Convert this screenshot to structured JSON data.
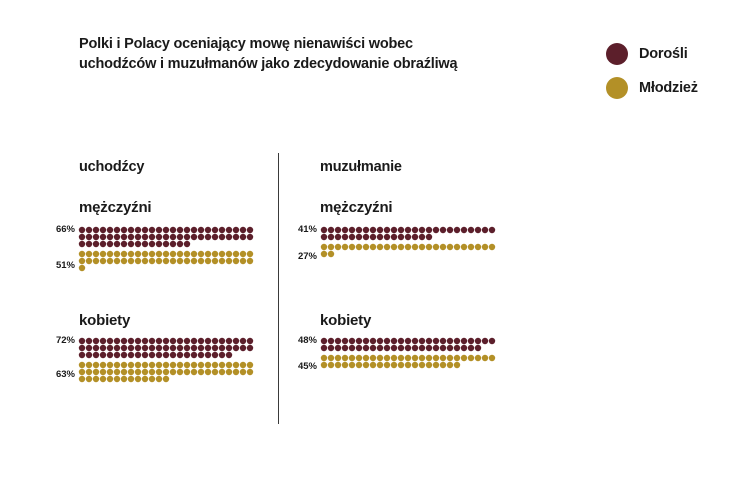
{
  "title_line1": "Polki i Polacy oceniający mowę nienawiści wobec",
  "title_line2": "uchodźców i muzułmanów jako zdecydowanie obraźliwą",
  "colors": {
    "adults": "#5c1f2b",
    "youth": "#b39027"
  },
  "legend": [
    {
      "label": "Dorośli",
      "color": "#5c1f2b"
    },
    {
      "label": "Młodzież",
      "color": "#b39027"
    }
  ],
  "chart_data": {
    "type": "dot-matrix",
    "title": "Polki i Polacy oceniający mowę nienawiści wobec uchodźców i muzułmanów jako zdecydowanie obraźliwą",
    "unit": "%",
    "series": [
      {
        "name": "Dorośli"
      },
      {
        "name": "Młodzież"
      }
    ],
    "panels": [
      {
        "name": "uchodźcy",
        "groups": [
          {
            "name": "mężczyźni",
            "values": [
              {
                "series": "Dorośli",
                "label": "66%",
                "value": 66
              },
              {
                "series": "Młodzież",
                "label": "51%",
                "value": 51
              }
            ]
          },
          {
            "name": "kobiety",
            "values": [
              {
                "series": "Dorośli",
                "label": "72%",
                "value": 72
              },
              {
                "series": "Młodzież",
                "label": "63%",
                "value": 63
              }
            ]
          }
        ]
      },
      {
        "name": "muzułmanie",
        "groups": [
          {
            "name": "mężczyźni",
            "values": [
              {
                "series": "Dorośli",
                "label": "41%",
                "value": 41
              },
              {
                "series": "Młodzież",
                "label": "27%",
                "value": 27
              }
            ]
          },
          {
            "name": "kobiety",
            "values": [
              {
                "series": "Dorośli",
                "label": "48%",
                "value": 48
              },
              {
                "series": "Młodzież",
                "label": "45%",
                "value": 45
              }
            ]
          }
        ]
      }
    ]
  }
}
